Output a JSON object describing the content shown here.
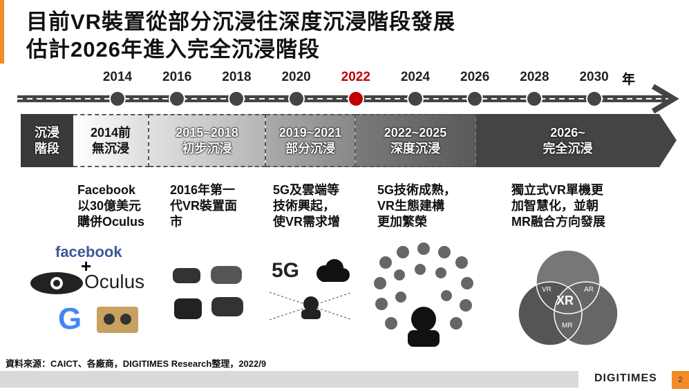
{
  "title": {
    "line1": "目前VR裝置從部分沉浸往深度沉浸階段發展",
    "line2": "估計2026年進入完全沉浸階段"
  },
  "timeline": {
    "years": [
      "2014",
      "2016",
      "2018",
      "2020",
      "2022",
      "2024",
      "2026",
      "2028",
      "2030"
    ],
    "unit": "年",
    "highlight_year": "2022",
    "highlight_color": "#c00000"
  },
  "stages": {
    "label_line1": "沉浸",
    "label_line2": "階段",
    "items": [
      {
        "years": "2014前",
        "name": "無沉浸"
      },
      {
        "years": "2015~2018",
        "name": "初步沉浸"
      },
      {
        "years": "2019~2021",
        "name": "部分沉浸"
      },
      {
        "years": "2022~2025",
        "name": "深度沉浸"
      },
      {
        "years": "2026~",
        "name": "完全沉浸"
      }
    ]
  },
  "descriptions": [
    [
      "Facebook",
      "以30億美元",
      "購併Oculus"
    ],
    [
      "2016年第一",
      "代VR裝置面",
      "市"
    ],
    [
      "5G及雲端等",
      "技術興起，",
      "使VR需求增"
    ],
    [
      "5G技術成熟，",
      "VR生態建構",
      "更加繁榮"
    ],
    [
      "獨立式VR單機更",
      "加智慧化，並朝",
      "MR融合方向發展"
    ]
  ],
  "logos": {
    "facebook": "facebook",
    "plus": "+",
    "oculus": "Oculus",
    "fiveg": "5G",
    "xr": "XR",
    "vr": "VR",
    "ar": "AR",
    "mr": "MR"
  },
  "footer": {
    "source": "資料來源：CAICT、各廠商，DIGITIMES Research整理，2022/9",
    "brand": "DIGITIMES",
    "page": "2",
    "accent": "#f28c28"
  }
}
